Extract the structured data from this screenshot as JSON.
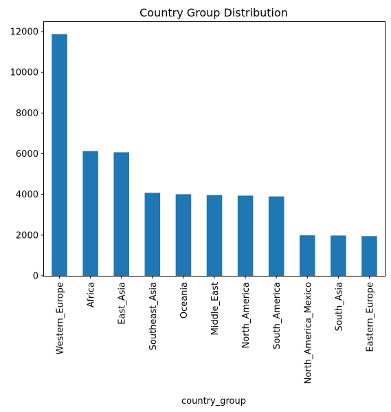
{
  "chart_data": {
    "type": "bar",
    "title": "Country Group Distribution",
    "xlabel": "country_group",
    "ylabel": "",
    "categories": [
      "Western_Europe",
      "Africa",
      "East_Asia",
      "Southeast_Asia",
      "Oceania",
      "Middle_East",
      "North_America",
      "South_America",
      "North_America_Mexico",
      "South_Asia",
      "Eastern_Europe"
    ],
    "values": [
      11880,
      6130,
      6070,
      4080,
      4010,
      3970,
      3940,
      3900,
      1990,
      1980,
      1950
    ],
    "ylim": [
      0,
      12473
    ],
    "yticks": [
      0,
      2000,
      4000,
      6000,
      8000,
      10000,
      12000
    ],
    "colors": {
      "bar": "#1f77b4"
    },
    "grid": false,
    "legend": "none"
  }
}
